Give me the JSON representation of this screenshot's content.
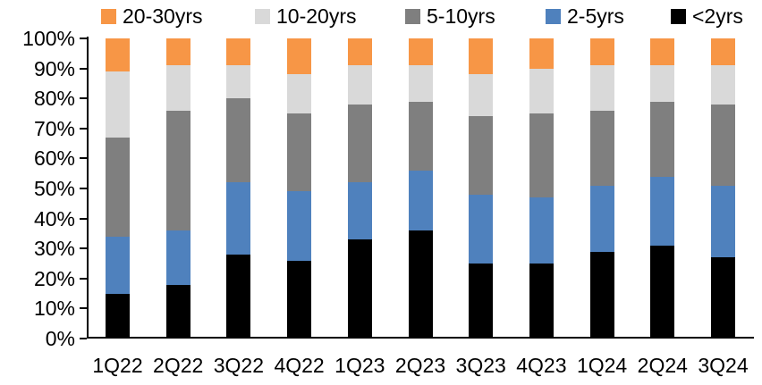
{
  "chart_data": {
    "type": "bar",
    "variant": "stacked-100-percent",
    "title": "",
    "categories": [
      "1Q22",
      "2Q22",
      "3Q22",
      "4Q22",
      "1Q23",
      "2Q23",
      "3Q23",
      "4Q23",
      "1Q24",
      "2Q24",
      "3Q24"
    ],
    "series": [
      {
        "name": "<2yrs",
        "color": "#000000",
        "values": [
          15,
          18,
          28,
          26,
          33,
          36,
          25,
          25,
          29,
          31,
          27
        ]
      },
      {
        "name": "2-5yrs",
        "color": "#4F81BD",
        "values": [
          19,
          18,
          24,
          23,
          19,
          20,
          23,
          22,
          22,
          23,
          24
        ]
      },
      {
        "name": "5-10yrs",
        "color": "#7F7F7F",
        "values": [
          33,
          40,
          28,
          26,
          26,
          23,
          26,
          28,
          25,
          25,
          27
        ]
      },
      {
        "name": "10-20yrs",
        "color": "#D9D9D9",
        "values": [
          22,
          15,
          11,
          13,
          13,
          12,
          14,
          15,
          15,
          12,
          13
        ]
      },
      {
        "name": "20-30yrs",
        "color": "#F79646",
        "values": [
          11,
          9,
          9,
          12,
          9,
          9,
          12,
          10,
          9,
          9,
          9
        ]
      }
    ],
    "legend": {
      "position": "top",
      "items": [
        {
          "label": "20-30yrs",
          "color": "#F79646"
        },
        {
          "label": "10-20yrs",
          "color": "#D9D9D9"
        },
        {
          "label": "5-10yrs",
          "color": "#7F7F7F"
        },
        {
          "label": "2-5yrs",
          "color": "#4F81BD"
        },
        {
          "label": "<2yrs",
          "color": "#000000"
        }
      ]
    },
    "y_axis": {
      "min": 0,
      "max": 100,
      "step": 10,
      "tick_labels": [
        "0%",
        "10%",
        "20%",
        "30%",
        "40%",
        "50%",
        "60%",
        "70%",
        "80%",
        "90%",
        "100%"
      ]
    },
    "grid": false,
    "axis_color": "#000000",
    "background_color": "#FFFFFF"
  }
}
